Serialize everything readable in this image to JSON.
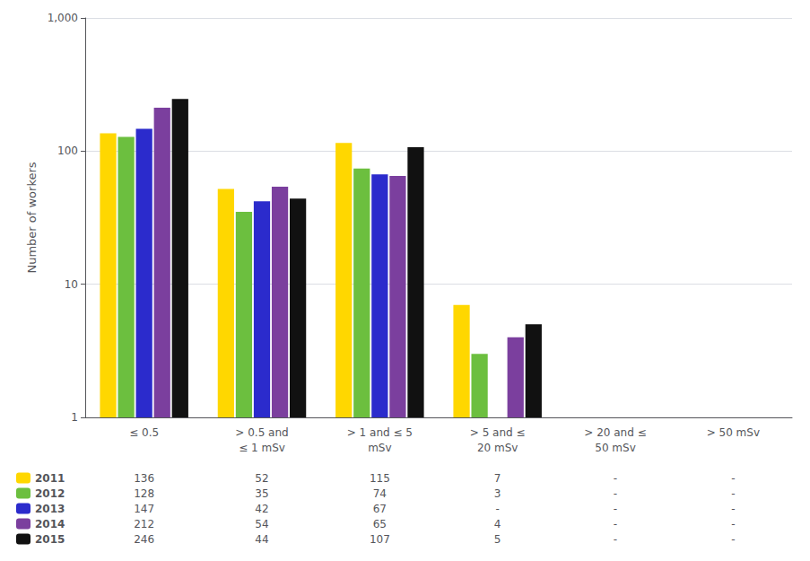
{
  "chart_data": {
    "type": "bar",
    "ylabel": "Number of workers",
    "categories": [
      "≤ 0.5",
      "> 0.5 and\n≤ 1 mSv",
      "> 1 and ≤ 5\nmSv",
      "> 5 and ≤\n20 mSv",
      "> 20 and ≤\n50 mSv",
      "> 50 mSv"
    ],
    "series": [
      {
        "name": "2011",
        "color": "#FFD700",
        "values": [
          136,
          52,
          115,
          7,
          null,
          null
        ],
        "value_labels": [
          "136",
          "52",
          "115",
          "7",
          "-",
          "-"
        ]
      },
      {
        "name": "2012",
        "color": "#6CBF3F",
        "values": [
          128,
          35,
          74,
          3,
          null,
          null
        ],
        "value_labels": [
          "128",
          "35",
          "74",
          "3",
          "-",
          "-"
        ]
      },
      {
        "name": "2013",
        "color": "#2B2BCC",
        "values": [
          147,
          42,
          67,
          null,
          null,
          null
        ],
        "value_labels": [
          "147",
          "42",
          "67",
          "-",
          "-",
          "-"
        ]
      },
      {
        "name": "2014",
        "color": "#7B3F9E",
        "values": [
          212,
          54,
          65,
          4,
          null,
          null
        ],
        "value_labels": [
          "212",
          "54",
          "65",
          "4",
          "-",
          "-"
        ]
      },
      {
        "name": "2015",
        "color": "#111111",
        "values": [
          246,
          44,
          107,
          5,
          null,
          null
        ],
        "value_labels": [
          "246",
          "44",
          "107",
          "5",
          "-",
          "-"
        ]
      }
    ],
    "log": "y",
    "ylim": [
      1,
      1000
    ],
    "yticks": [
      1,
      10,
      100,
      {
        "value": 1000,
        "label": "1,000"
      }
    ],
    "grid": true,
    "legend": "lower left"
  }
}
